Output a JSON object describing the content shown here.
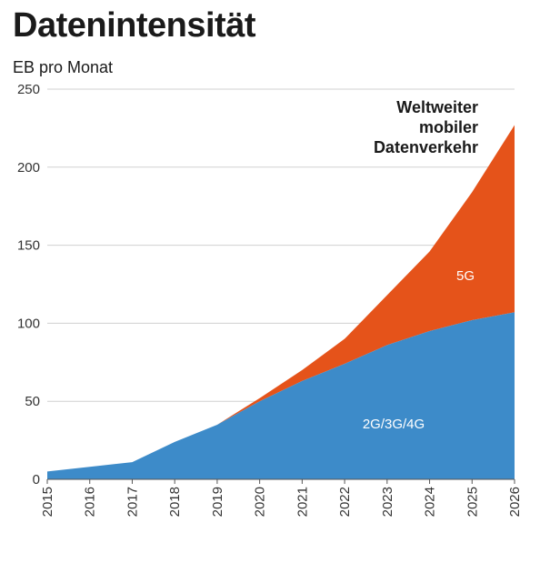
{
  "title": "Datenintensität",
  "unit_label": "EB pro Monat",
  "colors": {
    "legacy": "#3d8bc9",
    "fiveg": "#e5531a",
    "grid": "#d0d0d0",
    "axis": "#555555"
  },
  "chart_data": {
    "type": "area",
    "stacked": true,
    "x": [
      "2015",
      "2016",
      "2017",
      "2018",
      "2019",
      "2020",
      "2021",
      "2022",
      "2023",
      "2024",
      "2025",
      "2026"
    ],
    "ylim": [
      0,
      250
    ],
    "yticks": [
      0,
      50,
      100,
      150,
      200,
      250
    ],
    "grid": true,
    "annotation": [
      "Weltweiter",
      "mobiler",
      "Datenverkehr"
    ],
    "series": [
      {
        "name": "2G/3G/4G",
        "values": [
          5,
          8,
          11,
          24,
          35,
          50,
          63,
          74,
          86,
          95,
          102,
          107
        ]
      },
      {
        "name": "5G",
        "values": [
          0,
          0,
          0,
          0,
          0,
          2,
          7,
          16,
          32,
          51,
          82,
          120
        ]
      }
    ]
  }
}
